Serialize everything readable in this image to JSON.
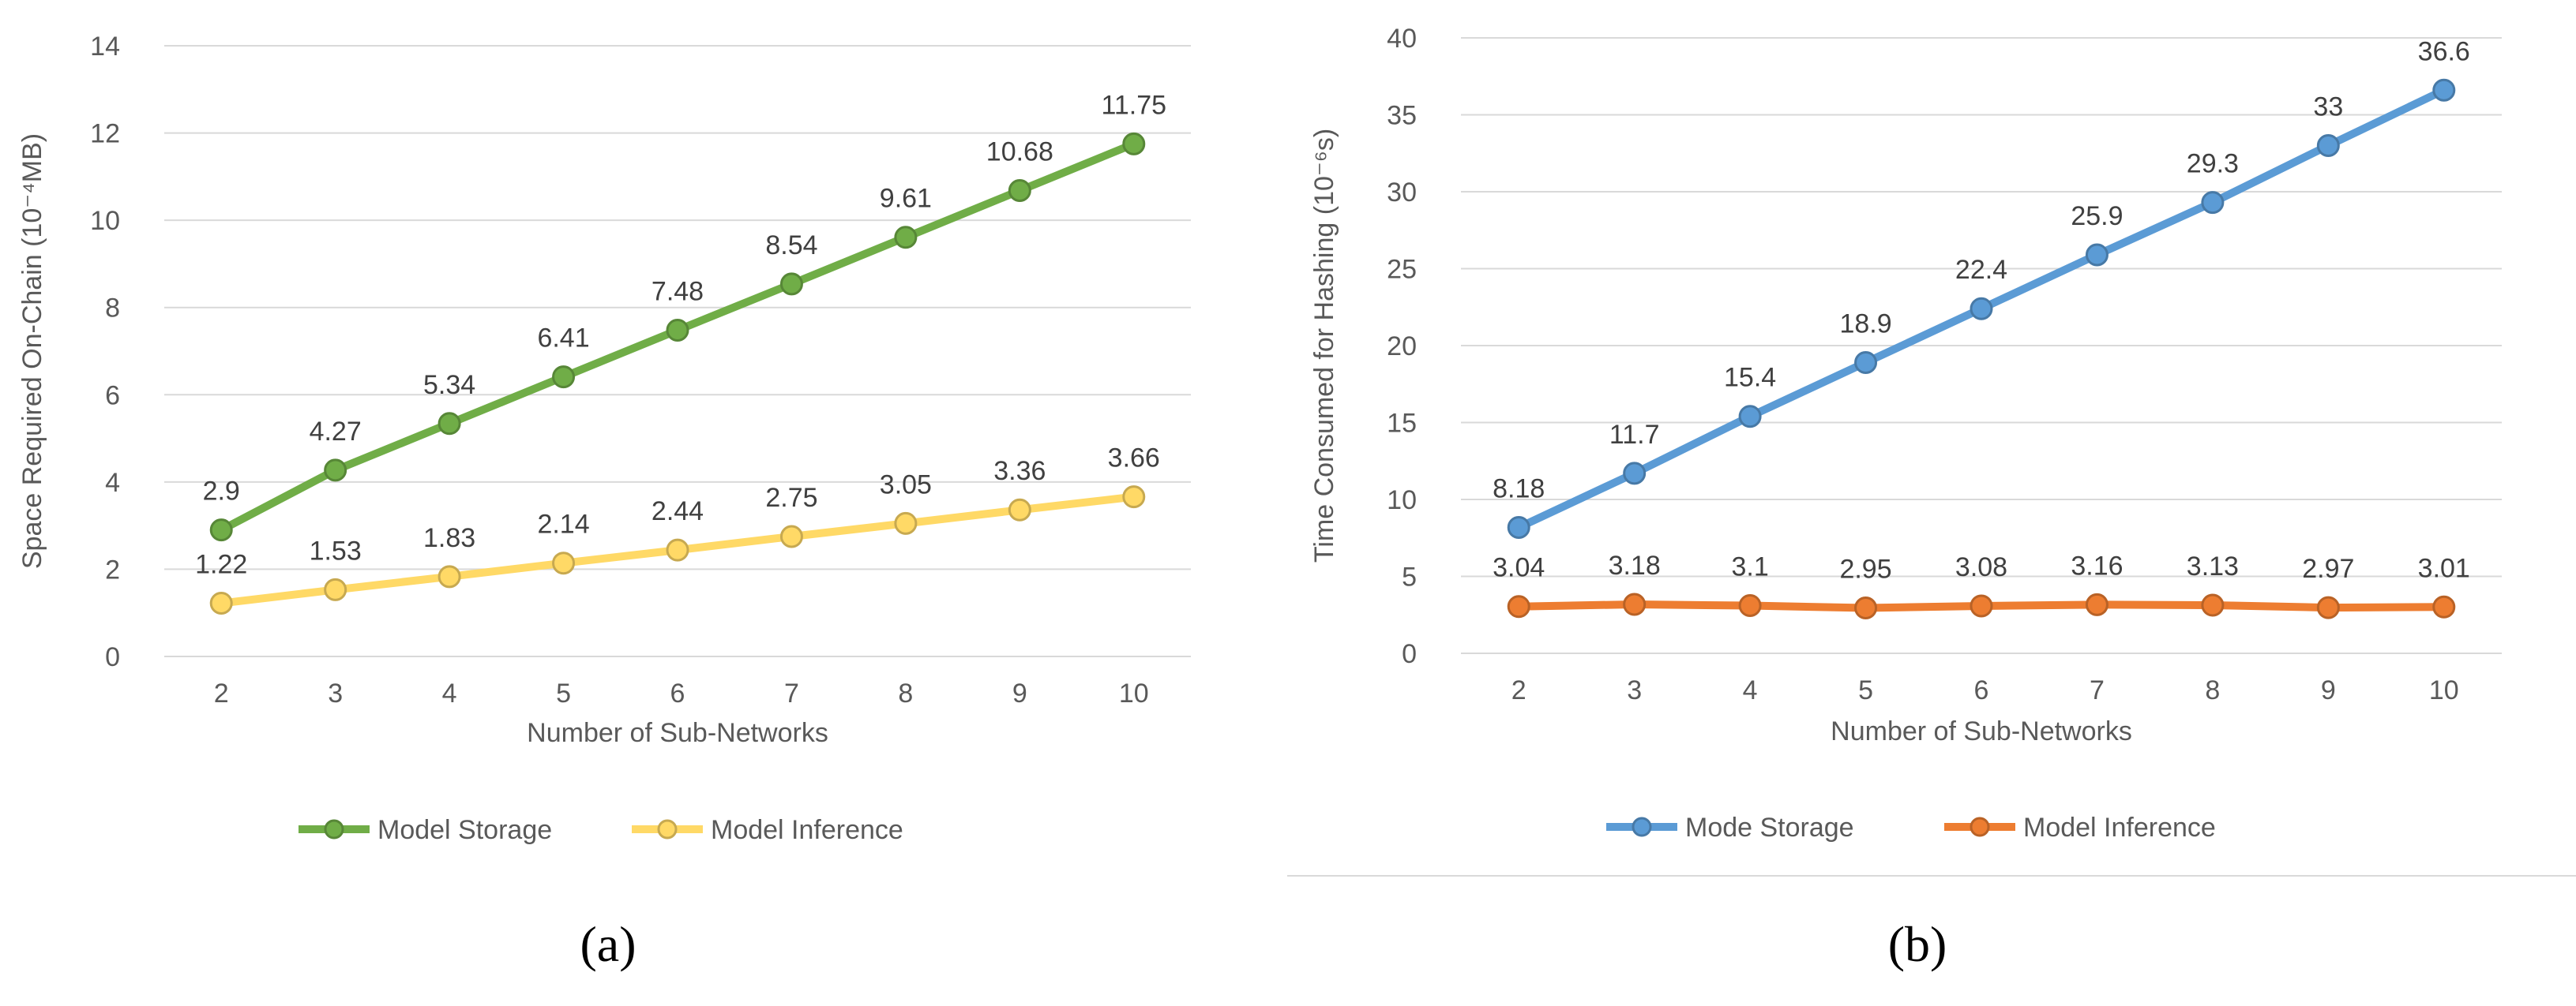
{
  "chart_data": [
    {
      "type": "line",
      "title": "",
      "panel_label": "(a)",
      "xlabel": "Number of Sub-Networks",
      "ylabel": "Space Required On-Chain (10⁻⁴MB)",
      "categories": [
        "2",
        "3",
        "4",
        "5",
        "6",
        "7",
        "8",
        "9",
        "10"
      ],
      "ylim": [
        0,
        14
      ],
      "yticks": [
        0,
        2,
        4,
        6,
        8,
        10,
        12,
        14
      ],
      "grid": true,
      "legend_position": "bottom",
      "series": [
        {
          "name": "Model Storage",
          "color": "#70ad47",
          "values": [
            2.9,
            4.27,
            5.34,
            6.41,
            7.48,
            8.54,
            9.61,
            10.68,
            11.75
          ],
          "labels": [
            "2.9",
            "4.27",
            "5.34",
            "6.41",
            "7.48",
            "8.54",
            "9.61",
            "10.68",
            "11.75"
          ]
        },
        {
          "name": "Model Inference",
          "color": "#ffd966",
          "values": [
            1.22,
            1.53,
            1.83,
            2.14,
            2.44,
            2.75,
            3.05,
            3.36,
            3.66
          ],
          "labels": [
            "1.22",
            "1.53",
            "1.83",
            "2.14",
            "2.44",
            "2.75",
            "3.05",
            "3.36",
            "3.66"
          ]
        }
      ]
    },
    {
      "type": "line",
      "title": "",
      "panel_label": "(b)",
      "xlabel": "Number of Sub-Networks",
      "ylabel": "Time Consumed for Hashing (10⁻⁶s)",
      "categories": [
        "2",
        "3",
        "4",
        "5",
        "6",
        "7",
        "8",
        "9",
        "10"
      ],
      "ylim": [
        0,
        40
      ],
      "yticks": [
        0,
        5,
        10,
        15,
        20,
        25,
        30,
        35,
        40
      ],
      "grid": true,
      "legend_position": "bottom",
      "series": [
        {
          "name": "Mode Storage",
          "color": "#5b9bd5",
          "values": [
            8.18,
            11.7,
            15.4,
            18.9,
            22.4,
            25.9,
            29.3,
            33,
            36.6
          ],
          "labels": [
            "8.18",
            "11.7",
            "15.4",
            "18.9",
            "22.4",
            "25.9",
            "29.3",
            "33",
            "36.6"
          ]
        },
        {
          "name": "Model Inference",
          "color": "#ed7d31",
          "values": [
            3.04,
            3.18,
            3.1,
            2.95,
            3.08,
            3.16,
            3.13,
            2.97,
            3.01
          ],
          "labels": [
            "3.04",
            "3.18",
            "3.1",
            "2.95",
            "3.08",
            "3.16",
            "3.13",
            "2.97",
            "3.01"
          ]
        }
      ]
    }
  ]
}
